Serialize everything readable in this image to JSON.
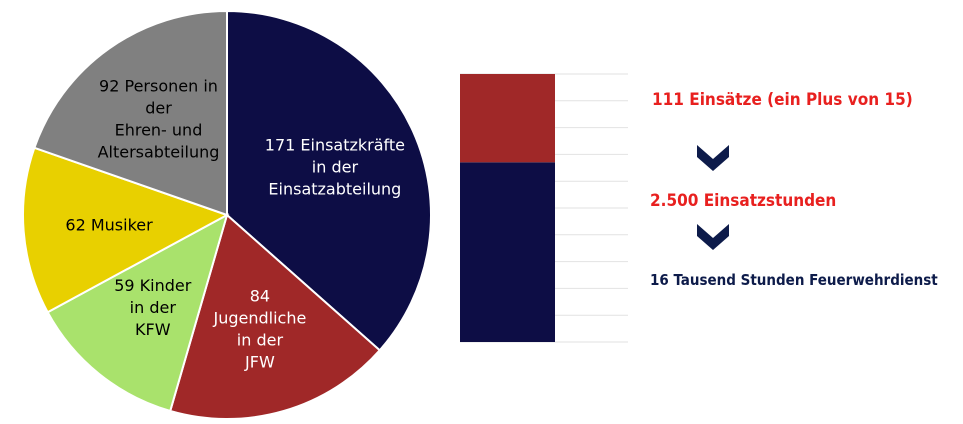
{
  "chart_data": [
    {
      "type": "pie",
      "slices": [
        {
          "value": 171,
          "label": [
            "171 Einsatzkräfte",
            "in der",
            "Einsatzabteilung"
          ],
          "color": "#0d0d45",
          "text_color": "#ffffff"
        },
        {
          "value": 84,
          "label": [
            "84",
            "Jugendliche",
            "in der",
            "JFW"
          ],
          "color": "#a02828",
          "text_color": "#ffffff"
        },
        {
          "value": 59,
          "label": [
            "59 Kinder",
            "in der",
            "KFW"
          ],
          "color": "#a9e26c",
          "text_color": "#000000"
        },
        {
          "value": 62,
          "label": [
            "62 Musiker"
          ],
          "color": "#e8d000",
          "text_color": "#000000"
        },
        {
          "value": 92,
          "label": [
            "92 Personen in",
            "der",
            "Ehren- und",
            "Altersabteilung"
          ],
          "color": "#808080",
          "text_color": "#000000"
        }
      ]
    },
    {
      "type": "bar",
      "stacked": true,
      "categories": [
        ""
      ],
      "series": [
        {
          "values": [
            171
          ],
          "color": "#0d0d45"
        },
        {
          "values": [
            84
          ],
          "color": "#a02828"
        }
      ],
      "grid": true
    }
  ],
  "info": {
    "line1": "111 Einsätze (ein Plus von 15)",
    "line2": "2.500 Einsatzstunden",
    "line3": "16 Tausend Stunden Feuerwehrdienst"
  },
  "colors": {
    "accent_red": "#e8201f",
    "navy": "#0d1b4a"
  },
  "icons": [
    "chevron-down-icon",
    "chevron-down-icon"
  ]
}
